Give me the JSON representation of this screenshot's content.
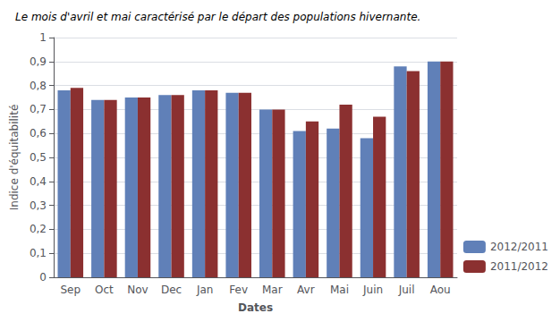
{
  "chart_data": {
    "type": "bar",
    "title": "Le mois d'avril et mai caractérisé par le départ des populations hivernante.",
    "xlabel": "Dates",
    "ylabel": "Indice d'équitabilité",
    "categories": [
      "Sep",
      "Oct",
      "Nov",
      "Dec",
      "Jan",
      "Fev",
      "Mar",
      "Avr",
      "Mai",
      "Juin",
      "Juil",
      "Aou"
    ],
    "series": [
      {
        "name": "2012/2011",
        "color": "#6080b8",
        "values": [
          0.78,
          0.74,
          0.75,
          0.76,
          0.78,
          0.77,
          0.7,
          0.61,
          0.62,
          0.58,
          0.88,
          0.9
        ]
      },
      {
        "name": "2011/2012",
        "color": "#8b3030",
        "values": [
          0.79,
          0.74,
          0.75,
          0.76,
          0.78,
          0.77,
          0.7,
          0.65,
          0.72,
          0.67,
          0.86,
          0.9
        ]
      }
    ],
    "ylim": [
      0,
      1.0
    ],
    "yticks": [
      0,
      {
        "value": 0.1,
        "label": "0,1"
      },
      {
        "value": 0.2,
        "label": "0,2"
      },
      {
        "value": 0.3,
        "label": "0,3"
      },
      {
        "value": 0.4,
        "label": "0,4"
      },
      {
        "value": 0.5,
        "label": "0,5"
      },
      {
        "value": 0.6,
        "label": "0,6"
      },
      {
        "value": 0.7,
        "label": "0,7"
      },
      {
        "value": 0.8,
        "label": "0,8"
      },
      {
        "value": 0.9,
        "label": "0,9"
      },
      1
    ],
    "grid": true,
    "legend": "lower right"
  }
}
